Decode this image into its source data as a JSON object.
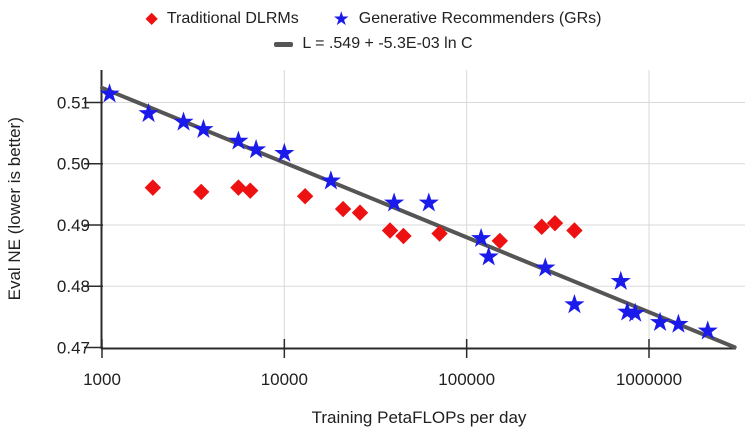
{
  "legend": {
    "series": [
      {
        "label": "Traditional DLRMs",
        "marker": "diamond",
        "glyph": "◆",
        "color": "#EE1111"
      },
      {
        "label": "Generative Recommenders (GRs)",
        "marker": "star",
        "glyph": "★",
        "color": "#1A1AEB"
      }
    ],
    "fit_label": "L = .549 + -5.3E-03 ln C",
    "fit_color": "#555555"
  },
  "chart_data": {
    "type": "scatter",
    "title": "",
    "xlabel": "Training PetaFLOPs per day",
    "ylabel": "Eval NE (lower is better)",
    "x_scale": "log",
    "xlim": [
      1000,
      3000000
    ],
    "ylim": [
      0.47,
      0.5153
    ],
    "x_ticks": [
      1000,
      10000,
      100000,
      1000000
    ],
    "x_tick_labels": [
      "1000",
      "10000",
      "100000",
      "1000000"
    ],
    "y_ticks": [
      0.47,
      0.48,
      0.49,
      0.5,
      0.51
    ],
    "y_tick_labels": [
      "0.47",
      "0.48",
      "0.49",
      "0.50",
      "0.51"
    ],
    "grid": true,
    "legend_position": "top",
    "style": {
      "grid_color": "#D9D9D9",
      "axis_color": "#2B2B2B",
      "text_color": "#212121",
      "background": "#FFFFFF"
    },
    "series": [
      {
        "name": "Traditional DLRMs",
        "marker": "diamond",
        "color": "#EE1111",
        "points": [
          [
            1900,
            0.4961
          ],
          [
            3500,
            0.4954
          ],
          [
            5600,
            0.4961
          ],
          [
            6500,
            0.4956
          ],
          [
            13000,
            0.4947
          ],
          [
            21000,
            0.4926
          ],
          [
            26000,
            0.492
          ],
          [
            38000,
            0.4891
          ],
          [
            45000,
            0.4882
          ],
          [
            71000,
            0.4886
          ],
          [
            152000,
            0.4874
          ],
          [
            258000,
            0.4897
          ],
          [
            305000,
            0.4903
          ],
          [
            390000,
            0.4891
          ]
        ]
      },
      {
        "name": "Generative Recommenders (GRs)",
        "marker": "star",
        "color": "#1A1AEB",
        "points": [
          [
            1100,
            0.5114
          ],
          [
            1800,
            0.5082
          ],
          [
            2800,
            0.5068
          ],
          [
            3600,
            0.5056
          ],
          [
            5600,
            0.5037
          ],
          [
            7000,
            0.5023
          ],
          [
            10000,
            0.5017
          ],
          [
            18000,
            0.4972
          ],
          [
            40000,
            0.4936
          ],
          [
            62000,
            0.4936
          ],
          [
            120000,
            0.4878
          ],
          [
            132000,
            0.4848
          ],
          [
            270000,
            0.483
          ],
          [
            390000,
            0.477
          ],
          [
            700000,
            0.4808
          ],
          [
            760000,
            0.4758
          ],
          [
            840000,
            0.4756
          ],
          [
            1150000,
            0.4741
          ],
          [
            1450000,
            0.4738
          ],
          [
            2100000,
            0.4727
          ]
        ]
      }
    ],
    "fit_line": {
      "label": "L = .549 + -5.3E-03 ln C",
      "intercept": 0.549,
      "slope_per_lnC": -0.0053,
      "color": "#555555",
      "x_range": [
        1000,
        2950000
      ]
    }
  }
}
